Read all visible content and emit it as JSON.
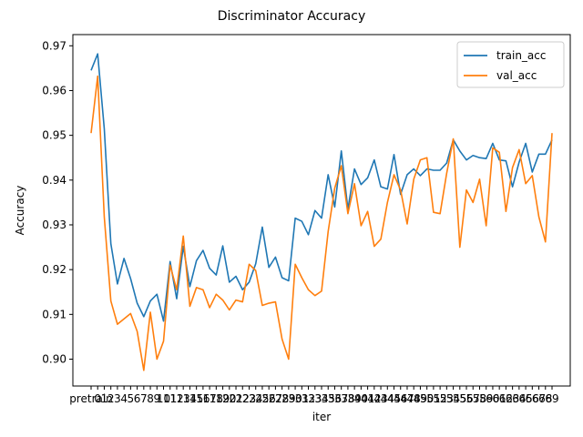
{
  "chart_data": {
    "type": "line",
    "title": "Discriminator Accuracy",
    "xlabel": "iter",
    "ylabel": "Accuracy",
    "ylim": [
      0.894,
      0.9725
    ],
    "yticks": [
      0.9,
      0.91,
      0.92,
      0.93,
      0.94,
      0.95,
      0.96,
      0.97
    ],
    "ytick_labels": [
      "0.90",
      "0.91",
      "0.92",
      "0.93",
      "0.94",
      "0.95",
      "0.96",
      "0.97"
    ],
    "grid": false,
    "legend_position": "upper right",
    "categories": [
      "pretrain",
      "0",
      "1",
      "2",
      "3",
      "4",
      "5",
      "6",
      "7",
      "8",
      "9",
      "10",
      "11",
      "12",
      "13",
      "14",
      "15",
      "16",
      "17",
      "18",
      "19",
      "20",
      "21",
      "22",
      "23",
      "24",
      "25",
      "26",
      "27",
      "28",
      "29",
      "30",
      "31",
      "32",
      "33",
      "34",
      "35",
      "36",
      "37",
      "38",
      "39",
      "40",
      "41",
      "42",
      "43",
      "44",
      "45",
      "46",
      "47",
      "48",
      "49",
      "50",
      "51",
      "52",
      "53",
      "54",
      "55",
      "56",
      "57",
      "58",
      "59",
      "60",
      "61",
      "62",
      "63",
      "64",
      "65",
      "66",
      "67",
      "68",
      "69"
    ],
    "series": [
      {
        "name": "train_acc",
        "color": "#1f77b4",
        "values": [
          0.9645,
          0.9682,
          0.9515,
          0.9258,
          0.9168,
          0.9225,
          0.918,
          0.9125,
          0.9095,
          0.913,
          0.9145,
          0.9085,
          0.9218,
          0.9135,
          0.9252,
          0.9162,
          0.922,
          0.9243,
          0.9203,
          0.9188,
          0.9253,
          0.9172,
          0.9185,
          0.9155,
          0.9172,
          0.9213,
          0.9295,
          0.9205,
          0.9228,
          0.9182,
          0.9175,
          0.9315,
          0.9308,
          0.9278,
          0.9332,
          0.9315,
          0.9412,
          0.934,
          0.9465,
          0.9335,
          0.9425,
          0.939,
          0.9405,
          0.9445,
          0.9385,
          0.938,
          0.9457,
          0.9368,
          0.9412,
          0.9425,
          0.941,
          0.9425,
          0.9422,
          0.9422,
          0.9438,
          0.949,
          0.9465,
          0.9445,
          0.9455,
          0.945,
          0.9448,
          0.9482,
          0.9445,
          0.9443,
          0.9385,
          0.944,
          0.9482,
          0.9418,
          0.9458,
          0.9458,
          0.949
        ]
      },
      {
        "name": "val_acc",
        "color": "#ff7f0e",
        "values": [
          0.9505,
          0.9632,
          0.9318,
          0.913,
          0.9078,
          0.909,
          0.9102,
          0.9062,
          0.8975,
          0.9105,
          0.9,
          0.904,
          0.921,
          0.9155,
          0.9275,
          0.9118,
          0.916,
          0.9155,
          0.9115,
          0.9145,
          0.9132,
          0.911,
          0.9132,
          0.9128,
          0.9212,
          0.9198,
          0.912,
          0.9125,
          0.9128,
          0.9045,
          0.9,
          0.9212,
          0.9182,
          0.9155,
          0.9142,
          0.9152,
          0.9285,
          0.9382,
          0.9432,
          0.9325,
          0.9392,
          0.9298,
          0.933,
          0.9252,
          0.9268,
          0.935,
          0.9412,
          0.9378,
          0.9302,
          0.9402,
          0.9445,
          0.945,
          0.9328,
          0.9325,
          0.9415,
          0.9492,
          0.925,
          0.9378,
          0.935,
          0.9402,
          0.9298,
          0.9472,
          0.9462,
          0.933,
          0.9428,
          0.9468,
          0.9392,
          0.941,
          0.9318,
          0.9262,
          0.9505
        ]
      }
    ]
  }
}
